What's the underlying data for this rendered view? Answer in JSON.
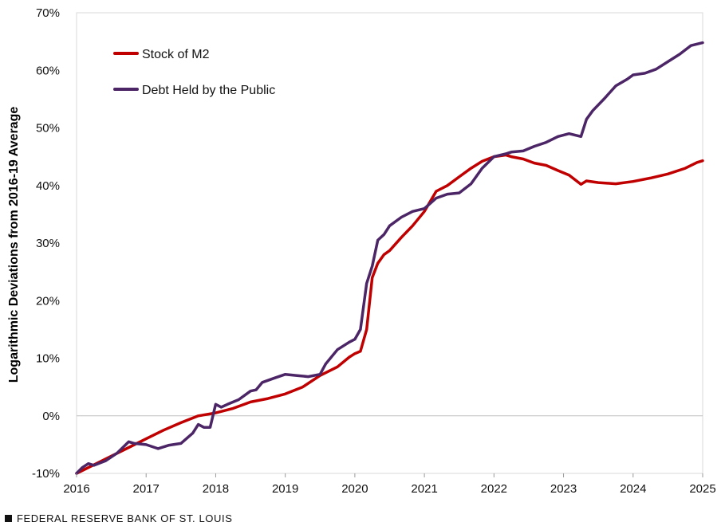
{
  "chart_data": {
    "type": "line",
    "ylabel": "Logarithmic Deviations from 2016-19 Average",
    "xlabel": "",
    "xlim": [
      2016,
      2025
    ],
    "ylim": [
      -10,
      70
    ],
    "x_ticks": [
      "2016",
      "2017",
      "2018",
      "2019",
      "2020",
      "2021",
      "2022",
      "2023",
      "2024",
      "2025"
    ],
    "y_ticks": [
      "-10%",
      "0%",
      "10%",
      "20%",
      "30%",
      "40%",
      "50%",
      "60%",
      "70%"
    ],
    "legend_position": "top-left",
    "series": [
      {
        "name": "Stock of M2",
        "color": "#c00000",
        "x": [
          2016.0,
          2016.25,
          2016.5,
          2016.75,
          2017.0,
          2017.25,
          2017.5,
          2017.75,
          2018.0,
          2018.25,
          2018.5,
          2018.75,
          2019.0,
          2019.25,
          2019.5,
          2019.75,
          2019.92,
          2020.0,
          2020.08,
          2020.17,
          2020.25,
          2020.33,
          2020.42,
          2020.5,
          2020.67,
          2020.83,
          2021.0,
          2021.17,
          2021.33,
          2021.5,
          2021.67,
          2021.83,
          2022.0,
          2022.17,
          2022.25,
          2022.42,
          2022.58,
          2022.75,
          2022.92,
          2023.08,
          2023.25,
          2023.33,
          2023.5,
          2023.75,
          2024.0,
          2024.25,
          2024.5,
          2024.75,
          2024.92,
          2025.0
        ],
        "values": [
          -10,
          -8.5,
          -7,
          -5.5,
          -4,
          -2.5,
          -1.2,
          0,
          0.5,
          1.3,
          2.4,
          3.0,
          3.8,
          5,
          7,
          8.5,
          10.2,
          10.8,
          11.2,
          15,
          24,
          26.5,
          28,
          28.7,
          31,
          33,
          35.5,
          39,
          40,
          41.5,
          43,
          44.2,
          45,
          45.3,
          45,
          44.6,
          43.9,
          43.5,
          42.6,
          41.8,
          40.2,
          40.8,
          40.5,
          40.3,
          40.7,
          41.3,
          42.0,
          43.0,
          44.0,
          44.3
        ]
      },
      {
        "name": "Debt Held by the Public",
        "color": "#4b2566",
        "x": [
          2016.0,
          2016.08,
          2016.17,
          2016.25,
          2016.42,
          2016.58,
          2016.75,
          2016.83,
          2017.0,
          2017.17,
          2017.33,
          2017.5,
          2017.67,
          2017.75,
          2017.83,
          2017.92,
          2018.0,
          2018.08,
          2018.17,
          2018.33,
          2018.5,
          2018.58,
          2018.67,
          2018.83,
          2019.0,
          2019.17,
          2019.33,
          2019.5,
          2019.58,
          2019.75,
          2019.92,
          2020.0,
          2020.08,
          2020.17,
          2020.25,
          2020.33,
          2020.42,
          2020.5,
          2020.67,
          2020.83,
          2021.0,
          2021.17,
          2021.33,
          2021.5,
          2021.67,
          2021.83,
          2022.0,
          2022.17,
          2022.25,
          2022.42,
          2022.58,
          2022.75,
          2022.92,
          2023.08,
          2023.25,
          2023.33,
          2023.42,
          2023.58,
          2023.75,
          2023.92,
          2024.0,
          2024.17,
          2024.33,
          2024.5,
          2024.67,
          2024.83,
          2025.0
        ],
        "values": [
          -10,
          -9,
          -8.3,
          -8.6,
          -7.8,
          -6.5,
          -4.5,
          -4.8,
          -5,
          -5.7,
          -5.1,
          -4.8,
          -3,
          -1.5,
          -2.0,
          -2,
          2,
          1.5,
          2,
          2.8,
          4.3,
          4.5,
          5.8,
          6.5,
          7.2,
          7.0,
          6.8,
          7.2,
          9,
          11.5,
          12.8,
          13.3,
          15,
          23,
          26,
          30.5,
          31.5,
          33,
          34.5,
          35.5,
          36,
          37.8,
          38.5,
          38.7,
          40.3,
          43,
          45,
          45.5,
          45.8,
          46,
          46.8,
          47.5,
          48.5,
          49.0,
          48.5,
          51.5,
          53,
          55,
          57.3,
          58.5,
          59.2,
          59.5,
          60.2,
          61.5,
          62.8,
          64.3,
          64.8
        ]
      }
    ]
  },
  "footer": {
    "source": "FEDERAL RESERVE BANK OF ST. LOUIS"
  }
}
